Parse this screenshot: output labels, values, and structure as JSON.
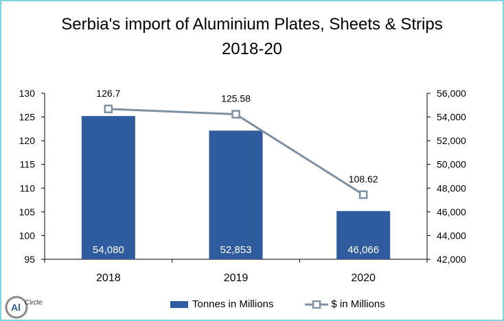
{
  "chart_data": {
    "type": "bar",
    "title": "Serbia's import of Aluminium Plates, Sheets & Strips",
    "subtitle": "2018-20",
    "categories": [
      "2018",
      "2019",
      "2020"
    ],
    "series": [
      {
        "name": "Tonnes in Millions",
        "type": "bar",
        "axis": "right",
        "values": [
          54080,
          52853,
          46066
        ],
        "labels": [
          "54,080",
          "52,853",
          "46,066"
        ],
        "color": "#2e5c9e"
      },
      {
        "name": "$ in Millions",
        "type": "line",
        "axis": "left",
        "values": [
          126.7,
          125.58,
          108.62
        ],
        "labels": [
          "126.7",
          "125.58",
          "108.62"
        ],
        "color": "#7d8fa3",
        "marker": "hollow-square"
      }
    ],
    "y_left": {
      "ylim": [
        95,
        130
      ],
      "ticks": [
        "95",
        "100",
        "105",
        "110",
        "115",
        "120",
        "125",
        "130"
      ]
    },
    "y_right": {
      "ylim": [
        42000,
        56000
      ],
      "ticks": [
        "42,000",
        "44,000",
        "46,000",
        "48,000",
        "50,000",
        "52,000",
        "54,000",
        "56,000"
      ]
    },
    "grid": false,
    "legend_position": "bottom"
  },
  "logo": {
    "text_al": "Al",
    "text_circle": "Circle"
  }
}
